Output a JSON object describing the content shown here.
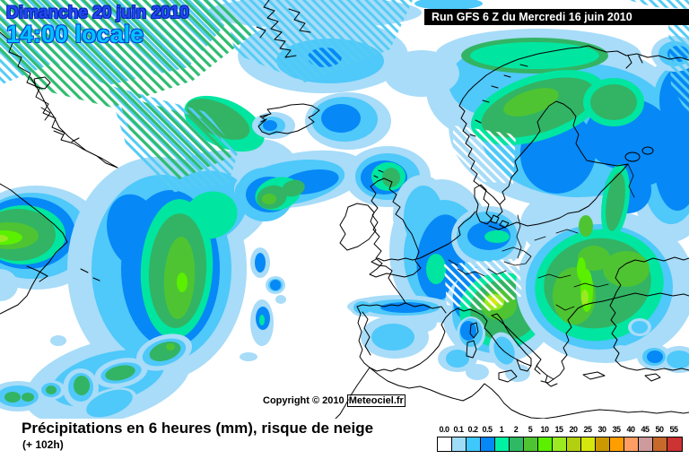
{
  "header": {
    "date_label": "Dimanche 20 juin 2010",
    "time_label": "14:00 locale",
    "run_label": "Run GFS 6 Z du Mercredi 16 juin 2010"
  },
  "legend": {
    "values": [
      "0.0",
      "0.1",
      "0.2",
      "0.5",
      "1",
      "2",
      "5",
      "10",
      "15",
      "20",
      "25",
      "30",
      "35",
      "40",
      "45",
      "50",
      "55"
    ],
    "colors": [
      "#FFFFFF",
      "#9FDCF8",
      "#3FC8FC",
      "#0688F6",
      "#00F0A4",
      "#30B964",
      "#4FC432",
      "#5AF000",
      "#9BE921",
      "#B2CF10",
      "#D6E70E",
      "#CC9A00",
      "#FF9E00",
      "#FF9E64",
      "#CD9B9B",
      "#C6692A",
      "#CC3333"
    ]
  },
  "footer": {
    "title": "Précipitations en 6 heures (mm), risque de neige",
    "forecast_offset": "(+ 102h)",
    "copyright_prefix": "Copyright © 2010",
    "copyright_site": "Meteociel.fr"
  }
}
